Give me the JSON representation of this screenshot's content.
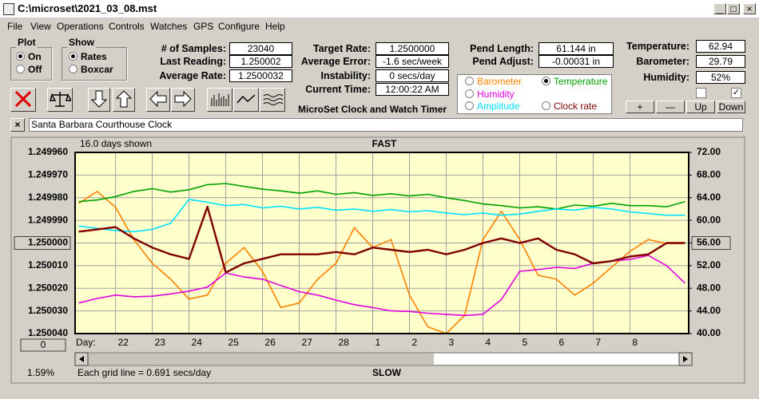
{
  "window": {
    "title": "C:\\microset\\2021_03_08.mst"
  },
  "menu": [
    "File",
    "View",
    "Operations",
    "Controls",
    "Watches",
    "GPS",
    "Configure",
    "Help"
  ],
  "plot": {
    "title": "Plot",
    "options": [
      "On",
      "Off"
    ]
  },
  "show": {
    "title": "Show",
    "options": [
      "Rates",
      "Boxcar"
    ]
  },
  "fields": [
    [
      {
        "label": "# of Samples:",
        "value": "23040"
      },
      {
        "label": "Last Reading:",
        "value": "1.250002"
      },
      {
        "label": "Average Rate:",
        "value": "1.2500032"
      }
    ],
    [
      {
        "label": "Target Rate:",
        "value": "1.2500000"
      },
      {
        "label": "Average Error:",
        "value": "-1.6 sec/week"
      },
      {
        "label": "Instability:",
        "value": "0 secs/day"
      },
      {
        "label": "Current Time:",
        "value": "12:00:22 AM"
      }
    ],
    [
      {
        "label": "Pend Length:",
        "value": "61.144 in"
      },
      {
        "label": "Pend Adjust:",
        "value": "-0.00031 in"
      }
    ],
    [
      {
        "label": "Temperature:",
        "value": "62.94"
      },
      {
        "label": "Barometer:",
        "value": "29.79"
      },
      {
        "label": "Humidity:",
        "value": "52%"
      }
    ]
  ],
  "app_name": "MicroSet Clock and Watch Timer",
  "buttons": [
    "+",
    "—",
    "Up",
    "Down"
  ],
  "clock_name": "Santa Barbara Courthouse Clock",
  "status": {
    "left": "1.59%",
    "zero_button": "0"
  },
  "chart_data": {
    "type": "line",
    "title": "FAST",
    "bottom_label": "SLOW",
    "span_note": "16.0 days shown",
    "grid_note": "Each grid line = 0.691 secs/day",
    "xlabel": "Day:",
    "x": [
      -1,
      -0.5,
      0,
      0.5,
      1,
      1.5,
      2,
      2.5,
      3,
      3.5,
      4,
      4.5,
      5,
      5.5,
      6,
      6.5,
      7,
      7.5,
      8,
      8.5,
      9,
      9.5,
      10,
      10.5,
      11,
      11.5,
      12,
      12.5,
      13,
      13.5,
      14,
      14.5,
      15,
      15.5
    ],
    "xlim": [
      -1.1,
      15.6
    ],
    "xticks": [
      {
        "value": 0,
        "label": "22"
      },
      {
        "value": 1,
        "label": "23"
      },
      {
        "value": 2,
        "label": "24"
      },
      {
        "value": 3,
        "label": "25"
      },
      {
        "value": 4,
        "label": "26"
      },
      {
        "value": 5,
        "label": "27"
      },
      {
        "value": 6,
        "label": "28"
      },
      {
        "value": 7,
        "label": "1"
      },
      {
        "value": 8,
        "label": "2"
      },
      {
        "value": 9,
        "label": "3"
      },
      {
        "value": 10,
        "label": "4"
      },
      {
        "value": 11,
        "label": "5"
      },
      {
        "value": 12,
        "label": "6"
      },
      {
        "value": 13,
        "label": "7"
      },
      {
        "value": 14,
        "label": "8"
      }
    ],
    "ylim": [
      1.25004,
      1.24996
    ],
    "yticks": [
      {
        "value": 1.24996,
        "label": "1.249960"
      },
      {
        "value": 1.24997,
        "label": "1.249970"
      },
      {
        "value": 1.24998,
        "label": "1.249980"
      },
      {
        "value": 1.24999,
        "label": "1.249990"
      },
      {
        "value": 1.25,
        "label": "1.250000"
      },
      {
        "value": 1.25001,
        "label": "1.250010"
      },
      {
        "value": 1.25002,
        "label": "1.250020"
      },
      {
        "value": 1.25003,
        "label": "1.250030"
      },
      {
        "value": 1.25004,
        "label": "1.250040"
      }
    ],
    "y2lim": [
      40,
      72
    ],
    "y2ticks": [
      {
        "value": 72,
        "label": "72.00"
      },
      {
        "value": 68,
        "label": "68.00"
      },
      {
        "value": 64,
        "label": "64.00"
      },
      {
        "value": 60,
        "label": "60.00"
      },
      {
        "value": 56,
        "label": "56.00"
      },
      {
        "value": 52,
        "label": "52.00"
      },
      {
        "value": 48,
        "label": "48.00"
      },
      {
        "value": 44,
        "label": "44.00"
      },
      {
        "value": 40,
        "label": "40.00"
      }
    ],
    "grid": true,
    "series": [
      {
        "name": "Barometer",
        "color": "#ff8000",
        "axis": "y2",
        "values": [
          63.0,
          65.1,
          62.3,
          56.6,
          52.4,
          49.6,
          46.1,
          46.8,
          52.4,
          55.2,
          51.0,
          44.6,
          45.4,
          49.6,
          52.4,
          58.7,
          55.2,
          56.6,
          46.8,
          41.2,
          40.0,
          43.2,
          56.6,
          61.6,
          56.6,
          50.3,
          49.6,
          46.8,
          48.9,
          51.7,
          54.5,
          56.6,
          55.9,
          55.9
        ]
      },
      {
        "name": "Temperature",
        "color": "#00a000",
        "axis": "y2",
        "values": [
          63.3,
          63.6,
          64.2,
          65.1,
          65.6,
          65.0,
          65.4,
          66.3,
          66.5,
          66.0,
          65.5,
          65.2,
          64.8,
          65.2,
          64.6,
          64.9,
          64.4,
          64.7,
          64.3,
          64.6,
          64.0,
          63.5,
          62.9,
          62.6,
          62.2,
          62.4,
          62.0,
          62.7,
          62.5,
          63.0,
          62.6,
          62.6,
          62.4,
          63.3
        ]
      },
      {
        "name": "Humidity",
        "color": "#e000e0",
        "axis": "y2",
        "values": [
          45.4,
          46.2,
          46.8,
          46.5,
          46.6,
          47.0,
          47.5,
          48.2,
          50.7,
          50.0,
          49.6,
          48.5,
          47.4,
          46.8,
          45.9,
          45.1,
          44.6,
          44.0,
          43.9,
          43.6,
          43.4,
          43.2,
          43.4,
          46.0,
          51.0,
          51.3,
          51.7,
          51.5,
          52.4,
          52.8,
          53.1,
          53.8,
          52.0,
          48.9
        ]
      },
      {
        "name": "Amplitude",
        "color": "#00e0ff",
        "axis": "y2",
        "values": [
          59.0,
          58.6,
          58.2,
          58.0,
          58.4,
          59.5,
          63.7,
          63.2,
          62.6,
          62.8,
          62.2,
          62.5,
          62.0,
          62.3,
          61.8,
          62.0,
          61.6,
          61.9,
          61.5,
          61.7,
          61.3,
          61.0,
          61.3,
          60.9,
          61.1,
          61.6,
          62.0,
          61.8,
          62.3,
          62.0,
          61.5,
          61.2,
          60.9,
          60.9
        ]
      },
      {
        "name": "Clock rate",
        "color": "#800000",
        "values": [
          1.249995,
          1.249994,
          1.249993,
          1.249998,
          1.250002,
          1.250005,
          1.250007,
          1.249984,
          1.250013,
          1.250009,
          1.250007,
          1.250005,
          1.250005,
          1.250005,
          1.250004,
          1.250005,
          1.250002,
          1.250003,
          1.250004,
          1.250003,
          1.250005,
          1.250003,
          1.25,
          1.249998,
          1.25,
          1.249998,
          1.250003,
          1.250005,
          1.250009,
          1.250008,
          1.250006,
          1.250005,
          1.25,
          1.25
        ]
      }
    ]
  }
}
